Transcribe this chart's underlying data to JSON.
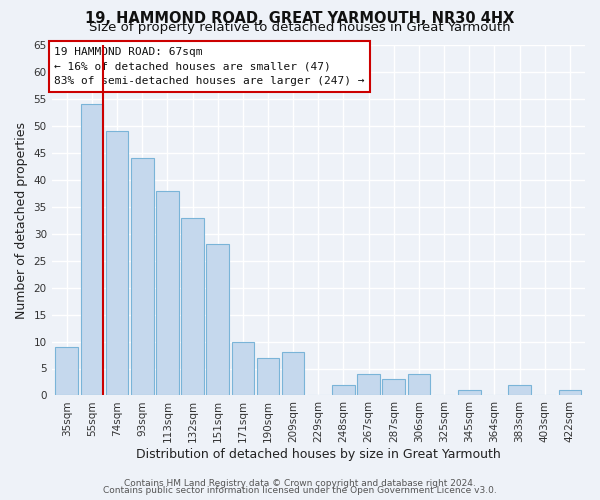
{
  "title": "19, HAMMOND ROAD, GREAT YARMOUTH, NR30 4HX",
  "subtitle": "Size of property relative to detached houses in Great Yarmouth",
  "xlabel": "Distribution of detached houses by size in Great Yarmouth",
  "ylabel": "Number of detached properties",
  "bar_labels": [
    "35sqm",
    "55sqm",
    "74sqm",
    "93sqm",
    "113sqm",
    "132sqm",
    "151sqm",
    "171sqm",
    "190sqm",
    "209sqm",
    "229sqm",
    "248sqm",
    "267sqm",
    "287sqm",
    "306sqm",
    "325sqm",
    "345sqm",
    "364sqm",
    "383sqm",
    "403sqm",
    "422sqm"
  ],
  "bar_values": [
    9,
    54,
    49,
    44,
    38,
    33,
    28,
    10,
    7,
    8,
    0,
    2,
    4,
    3,
    4,
    0,
    1,
    0,
    2,
    0,
    1
  ],
  "bar_color": "#c5d8ed",
  "bar_edgecolor": "#7ab4d8",
  "vline_color": "#cc0000",
  "ylim": [
    0,
    65
  ],
  "yticks": [
    0,
    5,
    10,
    15,
    20,
    25,
    30,
    35,
    40,
    45,
    50,
    55,
    60,
    65
  ],
  "annotation_title": "19 HAMMOND ROAD: 67sqm",
  "annotation_line1": "← 16% of detached houses are smaller (47)",
  "annotation_line2": "83% of semi-detached houses are larger (247) →",
  "annotation_box_facecolor": "#ffffff",
  "annotation_box_edgecolor": "#cc0000",
  "footer_line1": "Contains HM Land Registry data © Crown copyright and database right 2024.",
  "footer_line2": "Contains public sector information licensed under the Open Government Licence v3.0.",
  "background_color": "#eef2f8",
  "grid_color": "#ffffff",
  "title_fontsize": 10.5,
  "subtitle_fontsize": 9.5,
  "axis_label_fontsize": 9,
  "tick_fontsize": 7.5,
  "annotation_fontsize": 8,
  "footer_fontsize": 6.5
}
